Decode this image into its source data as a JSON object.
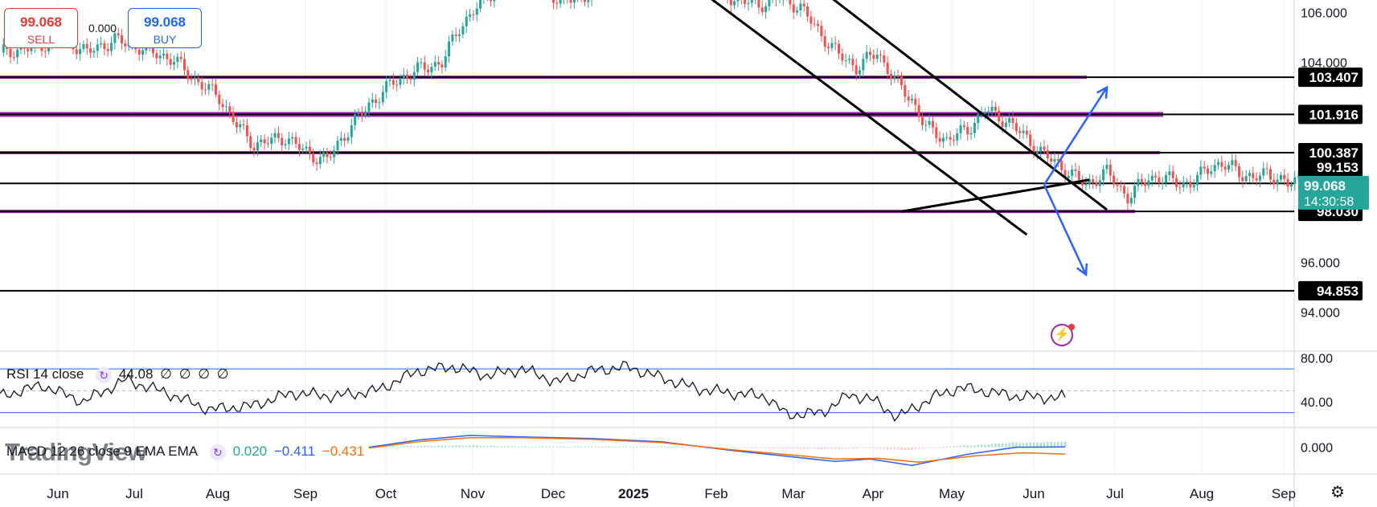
{
  "trade_panel": {
    "sell_price": "99.068",
    "sell_label": "SELL",
    "buy_price": "99.068",
    "buy_label": "BUY",
    "spread": "0.000"
  },
  "colors": {
    "up_candle": "#26a69a",
    "down_candle": "#ef5350",
    "purple_level": "#9c27b0",
    "black_level": "#000000",
    "projection_arrow": "#2962ff",
    "rsi_band": "#2962ff",
    "macd_line": "#2962ff",
    "signal_line": "#ff6d00",
    "current_price_bg": "#26a69a"
  },
  "chart_data": [
    {
      "type": "candlestick",
      "price_axis": {
        "ylim": [
          92.5,
          106.5
        ],
        "ticks": [
          "106.000",
          "104.000",
          "96.000",
          "94.000"
        ]
      },
      "time_axis": {
        "labels": [
          "Jun",
          "Jul",
          "Aug",
          "Sep",
          "Oct",
          "Nov",
          "Dec",
          "2025",
          "Feb",
          "Mar",
          "Apr",
          "May",
          "Jun",
          "Jul",
          "Aug",
          "Sep"
        ]
      },
      "close_path": [
        [
          0,
          104.4
        ],
        [
          10,
          104.6
        ],
        [
          18,
          105.0
        ],
        [
          25,
          104.4
        ],
        [
          33,
          104.9
        ],
        [
          40,
          104.6
        ],
        [
          50,
          104.1
        ],
        [
          56,
          103.3
        ],
        [
          63,
          102.6
        ],
        [
          68,
          101.5
        ],
        [
          73,
          100.7
        ],
        [
          82,
          101.0
        ],
        [
          89,
          100.3
        ],
        [
          94,
          100.1
        ],
        [
          100,
          101.3
        ],
        [
          106,
          102.3
        ],
        [
          113,
          103.2
        ],
        [
          120,
          103.7
        ],
        [
          127,
          104.0
        ],
        [
          132,
          105.4
        ],
        [
          140,
          106.7
        ],
        [
          148,
          107.2
        ],
        [
          156,
          107.0
        ],
        [
          162,
          106.4
        ],
        [
          170,
          106.8
        ],
        [
          177,
          108.2
        ],
        [
          182,
          108.7
        ],
        [
          190,
          107.6
        ],
        [
          196,
          107.3
        ],
        [
          203,
          106.9
        ],
        [
          210,
          106.6
        ],
        [
          218,
          106.3
        ],
        [
          224,
          106.6
        ],
        [
          230,
          106.2
        ],
        [
          236,
          105.1
        ],
        [
          241,
          104.3
        ],
        [
          246,
          103.8
        ],
        [
          252,
          104.4
        ],
        [
          258,
          103.1
        ],
        [
          262,
          102.5
        ],
        [
          266,
          101.4
        ],
        [
          272,
          100.9
        ],
        [
          278,
          101.3
        ],
        [
          283,
          102.1
        ],
        [
          290,
          101.6
        ],
        [
          296,
          100.8
        ],
        [
          300,
          100.3
        ],
        [
          306,
          99.7
        ],
        [
          312,
          99.1
        ],
        [
          318,
          99.6
        ],
        [
          324,
          98.6
        ],
        [
          330,
          99.4
        ],
        [
          336,
          99.3
        ],
        [
          342,
          99.1
        ],
        [
          348,
          99.9
        ],
        [
          354,
          99.8
        ],
        [
          360,
          99.3
        ],
        [
          364,
          99.6
        ],
        [
          370,
          99.1
        ],
        [
          376,
          99.5
        ],
        [
          379,
          99.07
        ]
      ],
      "current_price": {
        "value": "99.068",
        "countdown": "14:30:58"
      },
      "horizontal_levels": [
        {
          "label": "103.407",
          "value": 103.407,
          "style": "purple"
        },
        {
          "label": "101.916",
          "value": 101.916,
          "style": "purple"
        },
        {
          "label": "100.387",
          "value": 100.387,
          "style": "purple"
        },
        {
          "label": "99.153",
          "value": 99.153,
          "style": "black"
        },
        {
          "label": "98.030",
          "value": 98.03,
          "style": "purple"
        },
        {
          "label": "94.853",
          "value": 94.853,
          "style": "black"
        }
      ],
      "trend_lines": [
        {
          "from": [
            200,
            107.0
          ],
          "to": [
            295,
            97.1
          ]
        },
        {
          "from": [
            235,
            107.0
          ],
          "to": [
            318,
            98.1
          ]
        },
        {
          "from": [
            259,
            98.03
          ],
          "to": [
            313,
            99.3
          ]
        }
      ],
      "projections": [
        {
          "from": [
            300,
            99.1
          ],
          "to": [
            318,
            103.0
          ]
        },
        {
          "from": [
            300,
            99.1
          ],
          "to": [
            312,
            95.5
          ]
        }
      ]
    },
    {
      "type": "line",
      "title": "RSI 14 close",
      "value": "44.08",
      "legend_extra": [
        "∅",
        "∅",
        "∅",
        "∅"
      ],
      "ylim": [
        18,
        84
      ],
      "ticks": [
        "80.00",
        "40.00"
      ],
      "bands": [
        70,
        30
      ],
      "mid": 50,
      "series": [
        [
          0,
          45
        ],
        [
          12,
          55
        ],
        [
          24,
          40
        ],
        [
          36,
          60
        ],
        [
          48,
          48
        ],
        [
          60,
          33
        ],
        [
          72,
          36
        ],
        [
          84,
          48
        ],
        [
          96,
          45
        ],
        [
          108,
          50
        ],
        [
          120,
          68
        ],
        [
          130,
          72
        ],
        [
          140,
          64
        ],
        [
          150,
          70
        ],
        [
          160,
          58
        ],
        [
          170,
          68
        ],
        [
          180,
          72
        ],
        [
          190,
          62
        ],
        [
          200,
          52
        ],
        [
          210,
          48
        ],
        [
          220,
          45
        ],
        [
          226,
          28
        ],
        [
          236,
          30
        ],
        [
          244,
          46
        ],
        [
          250,
          43
        ],
        [
          258,
          26
        ],
        [
          268,
          44
        ],
        [
          276,
          53
        ],
        [
          284,
          49
        ],
        [
          292,
          45
        ],
        [
          300,
          44
        ],
        [
          306,
          44.08
        ]
      ]
    },
    {
      "type": "line",
      "title": "MACD 12 26 close 9 EMA EMA",
      "values": [
        "0.020",
        "−0.411",
        "−0.431"
      ],
      "ylim": [
        -1.7,
        1.1
      ],
      "ticks": [
        "0.000"
      ],
      "series": [
        {
          "name": "MACD",
          "points": [
            [
              106,
              0.0
            ],
            [
              120,
              0.45
            ],
            [
              135,
              0.75
            ],
            [
              150,
              0.65
            ],
            [
              170,
              0.55
            ],
            [
              190,
              0.35
            ],
            [
              210,
              -0.2
            ],
            [
              225,
              -0.55
            ],
            [
              240,
              -0.9
            ],
            [
              250,
              -0.75
            ],
            [
              262,
              -1.15
            ],
            [
              278,
              -0.45
            ],
            [
              292,
              0.0
            ],
            [
              306,
              0.02
            ]
          ]
        },
        {
          "name": "Signal",
          "points": [
            [
              106,
              -0.05
            ],
            [
              120,
              0.35
            ],
            [
              135,
              0.6
            ],
            [
              150,
              0.6
            ],
            [
              170,
              0.5
            ],
            [
              190,
              0.3
            ],
            [
              210,
              -0.15
            ],
            [
              225,
              -0.45
            ],
            [
              240,
              -0.75
            ],
            [
              252,
              -0.7
            ],
            [
              264,
              -0.95
            ],
            [
              280,
              -0.55
            ],
            [
              294,
              -0.35
            ],
            [
              306,
              -0.43
            ]
          ]
        }
      ]
    }
  ],
  "watermark": "TradingView"
}
